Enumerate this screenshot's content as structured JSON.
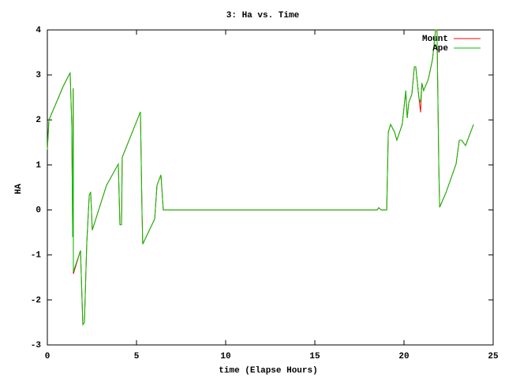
{
  "chart_data": {
    "type": "line",
    "title": "3: Ha vs. Time",
    "x_label": "time (Elapse Hours)",
    "y_label": "HA",
    "x": [
      0,
      0.09,
      0.66,
      0.88,
      1.28,
      1.37,
      1.42,
      1.45,
      1.46,
      1.86,
      1.99,
      2.08,
      2.21,
      2.35,
      2.43,
      2.52,
      3.32,
      3.98,
      4.07,
      4.16,
      4.2,
      5.22,
      5.31,
      5.35,
      6.02,
      6.15,
      6.37,
      6.5,
      18.5,
      18.58,
      18.72,
      19.03,
      19.12,
      19.25,
      19.47,
      19.6,
      19.9,
      20.1,
      20.18,
      20.27,
      20.44,
      20.58,
      20.66,
      20.84,
      20.93,
      21.0,
      21.1,
      21.37,
      21.6,
      21.77,
      21.85,
      21.95,
      22.0,
      22.35,
      22.92,
      23.1,
      23.23,
      23.45,
      23.9
    ],
    "series": [
      {
        "name": "Mount",
        "color": "#ff0000",
        "values": [
          1.34,
          2.0,
          2.53,
          2.74,
          3.05,
          1.87,
          -0.6,
          2.7,
          -1.42,
          -0.9,
          -2.55,
          -2.5,
          -0.75,
          0.33,
          0.4,
          -0.45,
          0.55,
          1.02,
          -0.33,
          -0.33,
          1.17,
          2.18,
          -0.06,
          -0.76,
          -0.2,
          0.55,
          0.78,
          0,
          0,
          0.05,
          0,
          0,
          1.73,
          1.9,
          1.73,
          1.55,
          1.9,
          2.65,
          2.04,
          2.39,
          2.57,
          3.18,
          3.18,
          2.48,
          2.17,
          2.82,
          2.65,
          2.91,
          3.35,
          4.0,
          4.0,
          0.99,
          0.06,
          0.38,
          1.02,
          1.55,
          1.55,
          1.43,
          1.9
        ]
      },
      {
        "name": "Ape",
        "color": "#00c000",
        "values": [
          1.34,
          2.0,
          2.53,
          2.74,
          3.05,
          1.87,
          -0.6,
          2.7,
          -1.37,
          -0.9,
          -2.55,
          -2.5,
          -0.75,
          0.33,
          0.4,
          -0.45,
          0.55,
          1.02,
          -0.33,
          -0.33,
          1.17,
          2.18,
          -0.06,
          -0.76,
          -0.2,
          0.55,
          0.78,
          0,
          0,
          0.05,
          0,
          0,
          1.73,
          1.9,
          1.73,
          1.55,
          1.9,
          2.65,
          2.04,
          2.39,
          2.57,
          3.18,
          3.18,
          2.48,
          2.39,
          2.82,
          2.65,
          2.91,
          3.35,
          4.0,
          4.0,
          0.99,
          0.06,
          0.38,
          1.02,
          1.55,
          1.55,
          1.43,
          1.9
        ]
      }
    ],
    "xlim": [
      0,
      25
    ],
    "xticks": [
      0,
      5,
      10,
      15,
      20,
      25
    ],
    "ylim": [
      -3,
      4
    ],
    "yticks": [
      -3,
      -2,
      -1,
      0,
      1,
      2,
      3,
      4
    ],
    "legend": "top-right",
    "grid": false
  }
}
